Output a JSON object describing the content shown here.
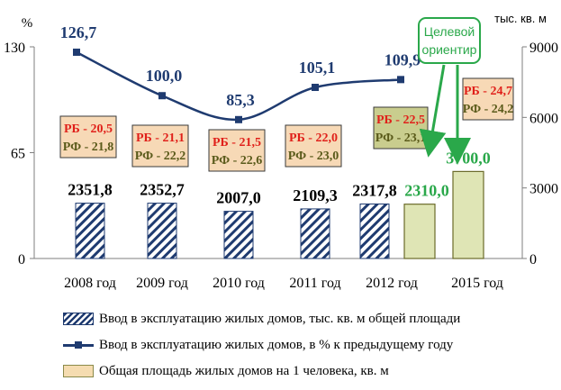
{
  "chart_data": {
    "type": "bar+line",
    "left_axis_unit": "%",
    "right_axis_unit": "тыс. кв. м",
    "left_ticks": [
      "130",
      "65",
      "0"
    ],
    "right_ticks": [
      "9000",
      "6000",
      "3000",
      "0"
    ],
    "left_range": [
      0,
      130
    ],
    "right_range": [
      0,
      9000
    ],
    "categories": [
      "2008 год",
      "2009 год",
      "2010 год",
      "2011 год",
      "2012 год",
      "2015 год"
    ],
    "series": [
      {
        "name": "Ввод в эксплуатацию жилых домов, тыс. кв. м общей площади",
        "axis": "right",
        "points": [
          {
            "category": "2008 год",
            "value": 2351.8,
            "label": "2351,8"
          },
          {
            "category": "2009 год",
            "value": 2352.7,
            "label": "2352,7"
          },
          {
            "category": "2010 год",
            "value": 2007.0,
            "label": "2007,0"
          },
          {
            "category": "2011 год",
            "value": 2109.3,
            "label": "2109,3"
          },
          {
            "category": "2012 год",
            "value": 2317.8,
            "label": "2317,8"
          }
        ]
      },
      {
        "name": "Ввод в эксплуатацию жилых домов, в % к предыдущему году",
        "axis": "left",
        "points": [
          {
            "category": "2008 год",
            "value": 126.7,
            "label": "126,7"
          },
          {
            "category": "2009 год",
            "value": 100.0,
            "label": "100,0"
          },
          {
            "category": "2010 год",
            "value": 85.3,
            "label": "85,3"
          },
          {
            "category": "2011 год",
            "value": 105.1,
            "label": "105,1"
          },
          {
            "category": "2012 год",
            "value": 109.9,
            "label": "109,9"
          }
        ]
      },
      {
        "name": "Общая площадь жилых домов на 1 человека, кв. м",
        "points": [
          {
            "category": "2012 год",
            "value": 2310.0,
            "label": "2310,0",
            "rb": "РБ - 22,5",
            "rf": "РФ - 23,1"
          },
          {
            "category": "2015 год",
            "value": 3700.0,
            "label": "3700,0",
            "rb": "РБ - 24,7",
            "rf": "РФ - 24,2"
          }
        ]
      }
    ],
    "per_capita_boxes": [
      {
        "category": "2008 год",
        "rb": "РБ - 20,5",
        "rf": "РФ - 21,8"
      },
      {
        "category": "2009 год",
        "rb": "РБ - 21,1",
        "rf": "РФ - 22,2"
      },
      {
        "category": "2010 год",
        "rb": "РБ - 21,5",
        "rf": "РФ - 22,6"
      },
      {
        "category": "2011 год",
        "rb": "РБ - 22,0",
        "rf": "РФ - 23,0"
      }
    ],
    "target_callout": {
      "line1": "Целевой",
      "line2": "ориентир"
    },
    "colors": {
      "navy": "#1f3b70",
      "green": "#2aa84a",
      "rb_text": "#e0201a",
      "rf_text": "#5a5a1a",
      "box_warm": "#f7d9b6",
      "box_olive": "#c9cd8e",
      "bar_green": "#dfe5b5"
    }
  },
  "legend": [
    {
      "label": "Ввод в эксплуатацию жилых домов, тыс. кв. м общей площади"
    },
    {
      "label": "Ввод в эксплуатацию жилых домов, в % к предыдущему году"
    },
    {
      "label": "Общая площадь жилых домов на 1 человека, кв. м"
    }
  ]
}
